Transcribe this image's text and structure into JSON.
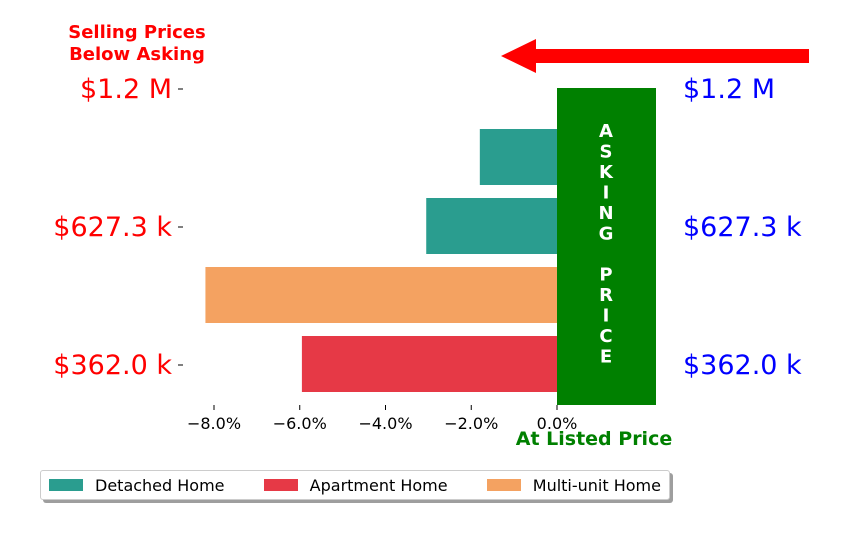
{
  "chart_data": {
    "type": "bar",
    "orientation": "horizontal",
    "annotation_top_left": [
      "Selling Prices",
      "Below Asking"
    ],
    "annotation_bottom": "At Listed Price",
    "asking_price_letters": [
      "A",
      "S",
      "K",
      "I",
      "N",
      "G",
      "",
      "P",
      "R",
      "I",
      "C",
      "E"
    ],
    "left_tick_labels": [
      "$1.2 M",
      "$627.3 k",
      "$362.0 k"
    ],
    "right_tick_labels": [
      "$1.2 M",
      "$627.3 k",
      "$362.0 k"
    ],
    "x_ticks": [
      -8.0,
      -6.0,
      -4.0,
      -2.0,
      0.0
    ],
    "x_tick_labels": [
      "−8.0%",
      "−6.0%",
      "−4.0%",
      "−2.0%",
      "0.0%"
    ],
    "xlim": [
      -8.8,
      1.0
    ],
    "series": [
      {
        "name": "Detached Home",
        "color": "#2a9d8f"
      },
      {
        "name": "Apartment Home",
        "color": "#e63946"
      },
      {
        "name": "Multi-unit Home",
        "color": "#f4a261"
      }
    ],
    "bars": [
      {
        "series": "Detached Home",
        "value": -1.8
      },
      {
        "series": "Detached Home",
        "value": -3.05
      },
      {
        "series": "Multi-unit Home",
        "value": -8.2
      },
      {
        "series": "Apartment Home",
        "value": -5.95
      }
    ],
    "colors": {
      "left_labels": "#ff0000",
      "right_labels": "#0000ff",
      "asking_box": "#008000",
      "arrow": "#ff0000",
      "bottom_annotation": "#008000"
    },
    "grid": false,
    "legend_position": "bottom"
  }
}
